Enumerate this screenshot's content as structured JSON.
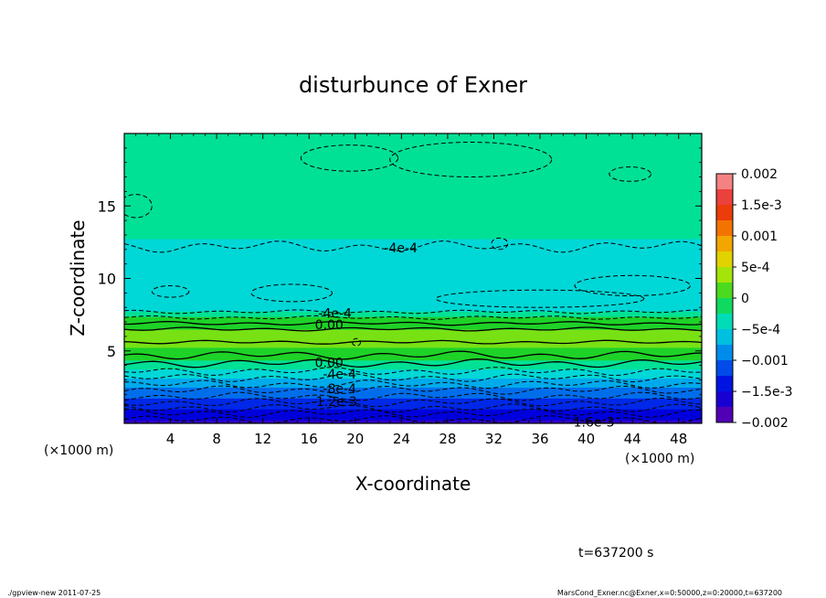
{
  "chart_data": {
    "type": "heatmap",
    "title": "disturbunce of Exner",
    "xlabel": "X-coordinate",
    "ylabel": "Z-coordinate",
    "x_unit_label": "(×1000 m)",
    "y_unit_label": "(×1000 m)",
    "xlim": [
      0,
      50
    ],
    "ylim": [
      0,
      20
    ],
    "x_ticks": [
      "4",
      "8",
      "12",
      "16",
      "20",
      "24",
      "28",
      "32",
      "36",
      "40",
      "44",
      "48"
    ],
    "x_tick_values": [
      4,
      8,
      12,
      16,
      20,
      24,
      28,
      32,
      36,
      40,
      44,
      48
    ],
    "y_ticks": [
      "5",
      "10",
      "15"
    ],
    "y_tick_values": [
      5,
      10,
      15
    ],
    "colorbar": {
      "labels": [
        "0.002",
        "1.5e-3",
        "0.001",
        "5e-4",
        "0",
        "−5e-4",
        "−0.001",
        "−1.5e-3",
        "−0.002"
      ],
      "min": -0.002,
      "max": 0.002
    },
    "profile": {
      "z": [
        0,
        0.5,
        1,
        1.5,
        2,
        2.5,
        3,
        3.5,
        4,
        4.5,
        5,
        5.5,
        6,
        6.5,
        7,
        7.5,
        8,
        9,
        10,
        11,
        12,
        13,
        14,
        15,
        16,
        17,
        18,
        19,
        20
      ],
      "value": [
        -0.0017,
        -0.00155,
        -0.0014,
        -0.0012,
        -0.00105,
        -0.0009,
        -0.0007,
        -0.0005,
        -0.0003,
        -0.0001,
        5e-05,
        0.00018,
        0.0002,
        0.00012,
        0.0,
        -0.0002,
        -0.0005,
        -0.00055,
        -0.00058,
        -0.00055,
        -0.00045,
        -0.00035,
        -0.0003,
        -0.00028,
        -0.00022,
        -0.0002,
        -0.00022,
        -0.00025,
        -0.00025
      ]
    },
    "contour_labels": [
      {
        "text": "-4e-4",
        "x": 22.5,
        "z": 12.1
      },
      {
        "text": "-4e-4",
        "x": 16.8,
        "z": 7.6
      },
      {
        "text": "0.00",
        "x": 16.5,
        "z": 6.8
      },
      {
        "text": "0.00",
        "x": 16.5,
        "z": 4.2
      },
      {
        "text": "-4e-4",
        "x": 17.2,
        "z": 3.4
      },
      {
        "text": "-8e-4",
        "x": 17.2,
        "z": 2.4
      },
      {
        "text": "-1.2e-3",
        "x": 16.2,
        "z": 1.5
      },
      {
        "text": "-1.6e-3",
        "x": 38.5,
        "z": 0.1
      }
    ]
  },
  "footer": {
    "time_label": "t=637200 s",
    "program": "./gpview-new   2011-07-25",
    "file_info": "MarsCond_Exner.nc@Exner,x=0:50000,z=0:20000,t=637200"
  }
}
